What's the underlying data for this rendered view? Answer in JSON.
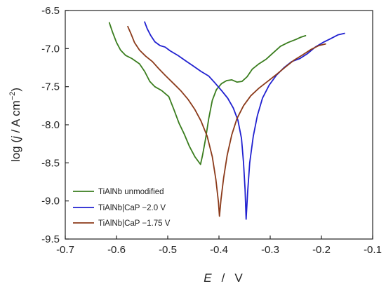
{
  "chart_data": {
    "type": "line",
    "xlabel": {
      "symbol": "E",
      "sep": "/",
      "unit": "V"
    },
    "ylabel": {
      "prefix": "log (",
      "symbol": "j",
      "sep": " / ",
      "unit": "A cm",
      "exp": "−2",
      "suffix": ")"
    },
    "xlim": [
      -0.7,
      -0.1
    ],
    "ylim": [
      -9.5,
      -6.5
    ],
    "xticks": [
      -0.7,
      -0.6,
      -0.5,
      -0.4,
      -0.3,
      -0.2,
      -0.1
    ],
    "xtick_labels": [
      "-0.7",
      "-0.6",
      "-0.5",
      "-0.4",
      "-0.3",
      "-0.2",
      "-0.1"
    ],
    "yticks": [
      -9.5,
      -9.0,
      -8.5,
      -8.0,
      -7.5,
      -7.0,
      -6.5
    ],
    "ytick_labels": [
      "-9.5",
      "-9.0",
      "-8.5",
      "-8.0",
      "-7.5",
      "-7.0",
      "-6.5"
    ],
    "grid": false,
    "legend_position": "bottom-left",
    "series": [
      {
        "name": "TiAlNb unmodified",
        "color": "#3a7d1e",
        "points": [
          [
            -0.614,
            -6.66
          ],
          [
            -0.608,
            -6.78
          ],
          [
            -0.6,
            -6.92
          ],
          [
            -0.592,
            -7.02
          ],
          [
            -0.582,
            -7.09
          ],
          [
            -0.57,
            -7.13
          ],
          [
            -0.555,
            -7.2
          ],
          [
            -0.545,
            -7.3
          ],
          [
            -0.535,
            -7.43
          ],
          [
            -0.525,
            -7.5
          ],
          [
            -0.512,
            -7.55
          ],
          [
            -0.498,
            -7.63
          ],
          [
            -0.488,
            -7.8
          ],
          [
            -0.478,
            -7.98
          ],
          [
            -0.468,
            -8.12
          ],
          [
            -0.458,
            -8.28
          ],
          [
            -0.447,
            -8.42
          ],
          [
            -0.436,
            -8.52
          ],
          [
            -0.432,
            -8.4
          ],
          [
            -0.426,
            -8.18
          ],
          [
            -0.42,
            -7.92
          ],
          [
            -0.413,
            -7.68
          ],
          [
            -0.405,
            -7.54
          ],
          [
            -0.395,
            -7.46
          ],
          [
            -0.385,
            -7.42
          ],
          [
            -0.375,
            -7.41
          ],
          [
            -0.365,
            -7.44
          ],
          [
            -0.355,
            -7.43
          ],
          [
            -0.345,
            -7.37
          ],
          [
            -0.335,
            -7.27
          ],
          [
            -0.322,
            -7.2
          ],
          [
            -0.308,
            -7.14
          ],
          [
            -0.295,
            -7.06
          ],
          [
            -0.28,
            -6.97
          ],
          [
            -0.265,
            -6.92
          ],
          [
            -0.25,
            -6.88
          ],
          [
            -0.24,
            -6.85
          ],
          [
            -0.231,
            -6.83
          ]
        ]
      },
      {
        "name": "TiAlNb|CaP −2.0 V",
        "color": "#2020d0",
        "points": [
          [
            -0.545,
            -6.65
          ],
          [
            -0.54,
            -6.74
          ],
          [
            -0.533,
            -6.83
          ],
          [
            -0.525,
            -6.91
          ],
          [
            -0.515,
            -6.96
          ],
          [
            -0.505,
            -6.98
          ],
          [
            -0.495,
            -7.03
          ],
          [
            -0.48,
            -7.09
          ],
          [
            -0.465,
            -7.16
          ],
          [
            -0.45,
            -7.23
          ],
          [
            -0.435,
            -7.3
          ],
          [
            -0.42,
            -7.36
          ],
          [
            -0.408,
            -7.45
          ],
          [
            -0.395,
            -7.55
          ],
          [
            -0.383,
            -7.65
          ],
          [
            -0.372,
            -7.78
          ],
          [
            -0.363,
            -7.94
          ],
          [
            -0.356,
            -8.18
          ],
          [
            -0.352,
            -8.5
          ],
          [
            -0.349,
            -8.85
          ],
          [
            -0.347,
            -9.24
          ],
          [
            -0.344,
            -8.88
          ],
          [
            -0.34,
            -8.5
          ],
          [
            -0.333,
            -8.15
          ],
          [
            -0.325,
            -7.88
          ],
          [
            -0.315,
            -7.65
          ],
          [
            -0.302,
            -7.48
          ],
          [
            -0.288,
            -7.35
          ],
          [
            -0.273,
            -7.25
          ],
          [
            -0.258,
            -7.17
          ],
          [
            -0.242,
            -7.13
          ],
          [
            -0.228,
            -7.07
          ],
          [
            -0.212,
            -6.98
          ],
          [
            -0.197,
            -6.92
          ],
          [
            -0.182,
            -6.87
          ],
          [
            -0.168,
            -6.82
          ],
          [
            -0.155,
            -6.8
          ]
        ]
      },
      {
        "name": "TiAlNb|CaP −1.75 V",
        "color": "#8b3a1a",
        "points": [
          [
            -0.578,
            -6.71
          ],
          [
            -0.572,
            -6.8
          ],
          [
            -0.565,
            -6.92
          ],
          [
            -0.555,
            -7.02
          ],
          [
            -0.543,
            -7.1
          ],
          [
            -0.53,
            -7.17
          ],
          [
            -0.518,
            -7.26
          ],
          [
            -0.505,
            -7.35
          ],
          [
            -0.49,
            -7.45
          ],
          [
            -0.475,
            -7.55
          ],
          [
            -0.46,
            -7.67
          ],
          [
            -0.447,
            -7.8
          ],
          [
            -0.435,
            -7.95
          ],
          [
            -0.423,
            -8.15
          ],
          [
            -0.413,
            -8.42
          ],
          [
            -0.406,
            -8.72
          ],
          [
            -0.401,
            -9.02
          ],
          [
            -0.399,
            -9.2
          ],
          [
            -0.396,
            -8.98
          ],
          [
            -0.391,
            -8.7
          ],
          [
            -0.384,
            -8.4
          ],
          [
            -0.375,
            -8.13
          ],
          [
            -0.365,
            -7.92
          ],
          [
            -0.352,
            -7.75
          ],
          [
            -0.338,
            -7.62
          ],
          [
            -0.322,
            -7.52
          ],
          [
            -0.305,
            -7.43
          ],
          [
            -0.288,
            -7.34
          ],
          [
            -0.27,
            -7.24
          ],
          [
            -0.253,
            -7.15
          ],
          [
            -0.236,
            -7.08
          ],
          [
            -0.22,
            -7.01
          ],
          [
            -0.205,
            -6.96
          ],
          [
            -0.192,
            -6.94
          ]
        ]
      }
    ]
  }
}
